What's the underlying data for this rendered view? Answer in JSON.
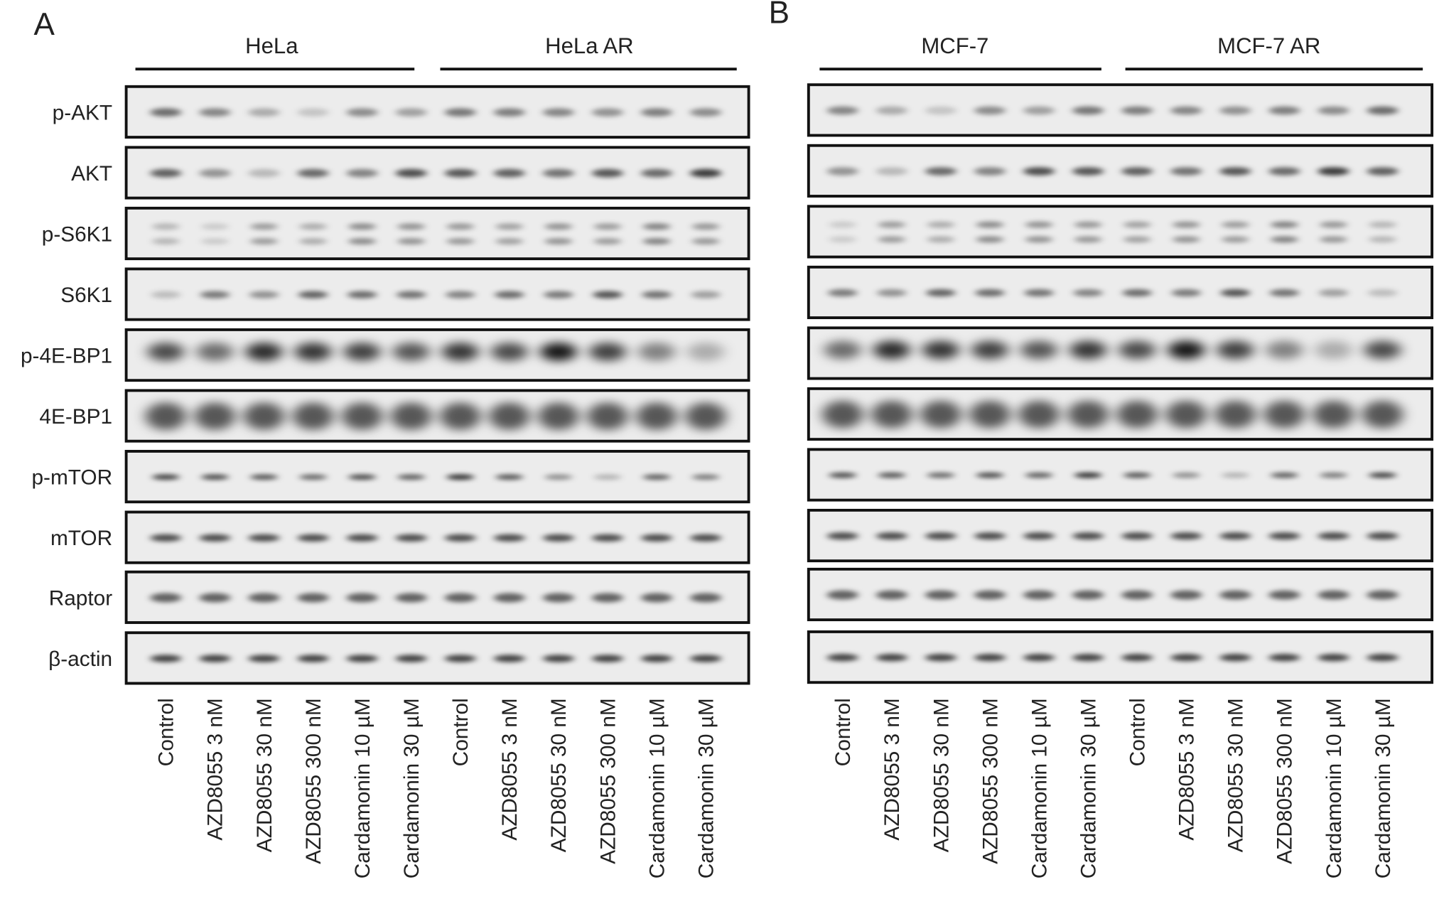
{
  "panels": [
    {
      "label": "A",
      "groups": [
        "HeLa",
        "HeLa AR"
      ],
      "rows": [
        "p-AKT",
        "AKT",
        "p-S6K1",
        "S6K1",
        "p-4E-BP1",
        "4E-BP1",
        "p-mTOR",
        "mTOR",
        "Raptor",
        "β-actin"
      ],
      "lanes": [
        "Control",
        "AZD8055 3 nM",
        "AZD8055 30 nM",
        "AZD8055 300 nM",
        "Cardamonin 10 µM",
        "Cardamonin 30 µM",
        "Control",
        "AZD8055 3 nM",
        "AZD8055 30 nM",
        "AZD8055 300 nM",
        "Cardamonin 10 µM",
        "Cardamonin 30 µM"
      ]
    },
    {
      "label": "B",
      "groups": [
        "MCF-7",
        "MCF-7 AR"
      ],
      "lanes": [
        "Control",
        "AZD8055 3 nM",
        "AZD8055 30 nM",
        "AZD8055 300 nM",
        "Cardamonin 10 µM",
        "Cardamonin 30 µM",
        "Control",
        "AZD8055 3 nM",
        "AZD8055 30 nM",
        "AZD8055 300 nM",
        "Cardamonin 10 µM",
        "Cardamonin 30 µM"
      ]
    }
  ]
}
